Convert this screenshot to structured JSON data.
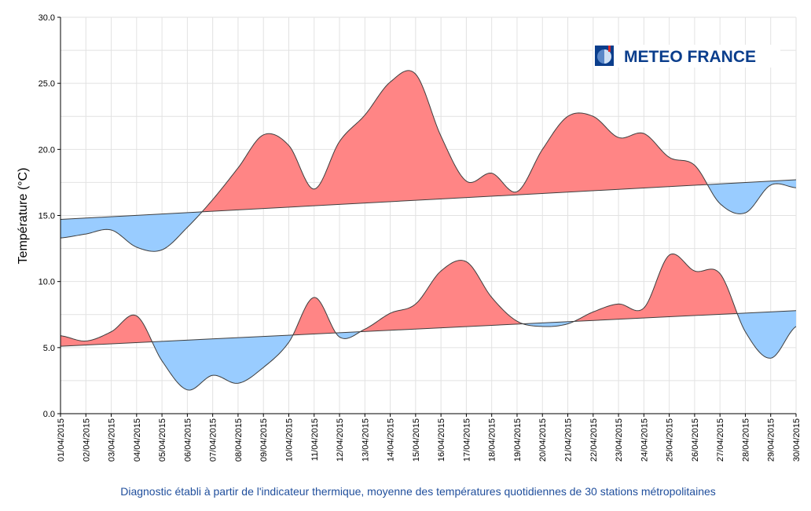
{
  "chart_data": {
    "type": "area",
    "ylabel": "Température (°C)",
    "xlabel": "",
    "caption": "Diagnostic établi à partir de l'indicateur thermique, moyenne des températures quotidiennes de 30 stations métropolitaines",
    "ylim": [
      0,
      30
    ],
    "yticks": [
      "0.0",
      "5.0",
      "10.0",
      "15.0",
      "20.0",
      "25.0",
      "30.0"
    ],
    "grid": true,
    "colors": {
      "above": "#ff8585",
      "below": "#99ccff",
      "line": "#3d3d3d",
      "caption": "#1f4e9c",
      "logo": "#0b3e8c"
    },
    "categories": [
      "01/04/2015",
      "02/04/2015",
      "03/04/2015",
      "04/04/2015",
      "05/04/2015",
      "06/04/2015",
      "07/04/2015",
      "08/04/2015",
      "09/04/2015",
      "10/04/2015",
      "11/04/2015",
      "12/04/2015",
      "13/04/2015",
      "14/04/2015",
      "15/04/2015",
      "16/04/2015",
      "17/04/2015",
      "18/04/2015",
      "19/04/2015",
      "20/04/2015",
      "21/04/2015",
      "22/04/2015",
      "23/04/2015",
      "24/04/2015",
      "25/04/2015",
      "26/04/2015",
      "27/04/2015",
      "28/04/2015",
      "29/04/2015",
      "30/04/2015"
    ],
    "series": [
      {
        "values": [
          13.3,
          13.6,
          13.9,
          12.6,
          12.4,
          14.1,
          16.2,
          18.6,
          21.1,
          20.3,
          17.0,
          20.6,
          22.6,
          25.1,
          25.7,
          21.0,
          17.6,
          18.2,
          16.8,
          20.0,
          22.5,
          22.5,
          20.9,
          21.2,
          19.4,
          18.8,
          15.9,
          15.2,
          17.3,
          17.1
        ],
        "normal": [
          14.7,
          17.7
        ]
      },
      {
        "values": [
          5.9,
          5.5,
          6.2,
          7.4,
          4.0,
          1.8,
          2.9,
          2.3,
          3.5,
          5.4,
          8.8,
          5.8,
          6.4,
          7.6,
          8.3,
          10.8,
          11.5,
          8.8,
          7.0,
          6.6,
          6.8,
          7.7,
          8.3,
          8.0,
          12.0,
          10.8,
          10.6,
          6.2,
          4.2,
          6.6
        ],
        "normal": [
          5.1,
          7.8
        ]
      }
    ]
  },
  "logo": {
    "text": "METEO FRANCE",
    "icon": "meteo-france-emblem-icon"
  }
}
